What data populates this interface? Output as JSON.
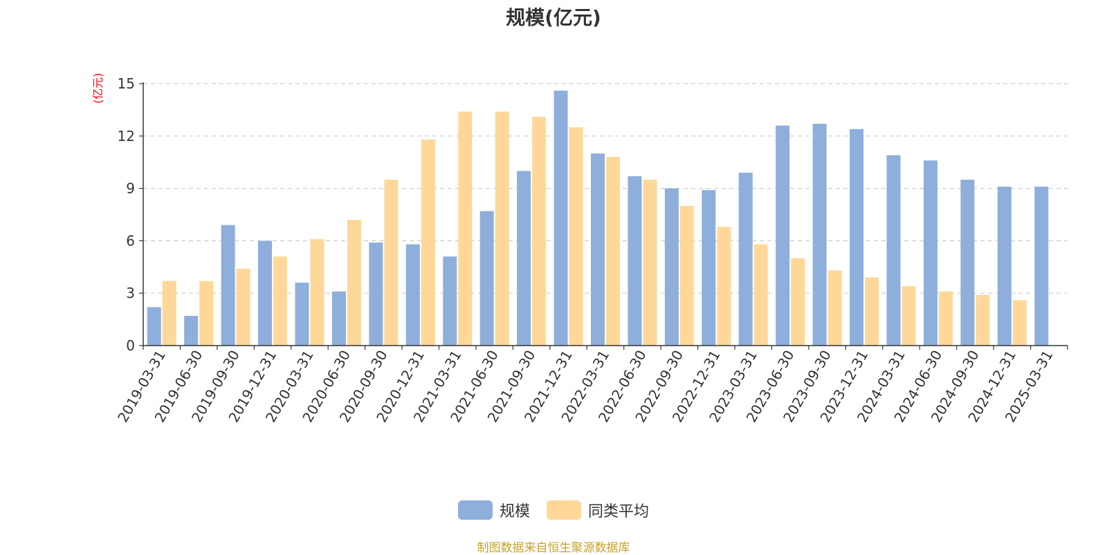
{
  "chart_data": {
    "type": "bar",
    "title": "规模(亿元)",
    "ylabel": "(亿元)",
    "xlabel": "",
    "ylim": [
      0,
      15
    ],
    "yticks": [
      0,
      3,
      6,
      9,
      12,
      15
    ],
    "grid": true,
    "legend_position": "bottom",
    "categories": [
      "2019-03-31",
      "2019-06-30",
      "2019-09-30",
      "2019-12-31",
      "2020-03-31",
      "2020-06-30",
      "2020-09-30",
      "2020-12-31",
      "2021-03-31",
      "2021-06-30",
      "2021-09-30",
      "2021-12-31",
      "2022-03-31",
      "2022-06-30",
      "2022-09-30",
      "2022-12-31",
      "2023-03-31",
      "2023-06-30",
      "2023-09-30",
      "2023-12-31",
      "2024-03-31",
      "2024-06-30",
      "2024-09-30",
      "2024-12-31",
      "2025-03-31"
    ],
    "series": [
      {
        "name": "规模",
        "color": "#8eaedc",
        "values": [
          2.2,
          1.7,
          6.9,
          6.0,
          3.6,
          3.1,
          5.9,
          5.8,
          5.1,
          7.7,
          10.0,
          14.6,
          11.0,
          9.7,
          9.0,
          8.9,
          9.9,
          12.6,
          12.7,
          12.4,
          10.9,
          10.6,
          9.5,
          9.1,
          9.1
        ]
      },
      {
        "name": "同类平均",
        "color": "#ffd899",
        "values": [
          3.7,
          3.7,
          4.4,
          5.1,
          6.1,
          7.2,
          9.5,
          11.8,
          13.4,
          13.4,
          13.1,
          12.5,
          10.8,
          9.5,
          8.0,
          6.8,
          5.8,
          5.0,
          4.3,
          3.9,
          3.4,
          3.1,
          2.9,
          2.6,
          null
        ]
      }
    ]
  },
  "source_note": "制图数据来自恒生聚源数据库"
}
